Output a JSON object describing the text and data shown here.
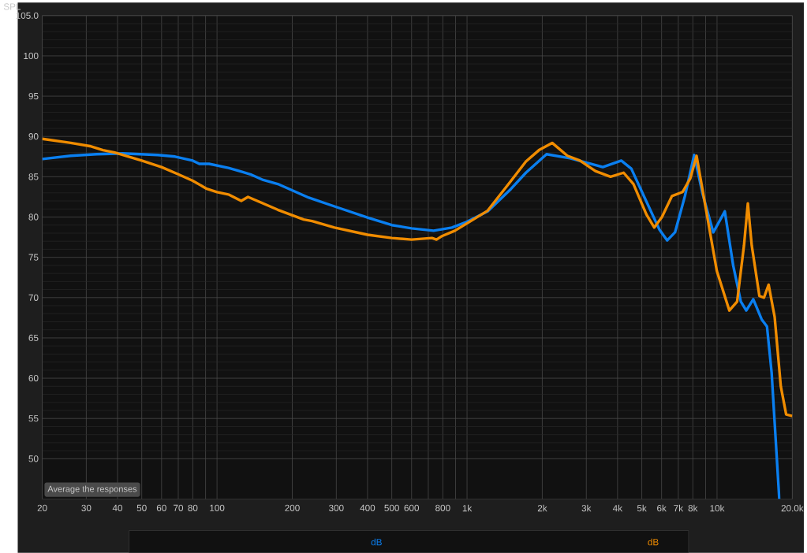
{
  "chart_data": {
    "type": "line",
    "ylabel": "SPL",
    "log": "x",
    "grid": true,
    "xlim": [
      20,
      20000
    ],
    "ylim": [
      45,
      105
    ],
    "xticks": [
      20,
      30,
      40,
      50,
      60,
      70,
      80,
      {
        "value": 90,
        "label": null
      },
      100,
      200,
      300,
      400,
      500,
      600,
      {
        "value": 700,
        "label": null
      },
      800,
      {
        "value": 900,
        "label": null
      },
      {
        "value": 1000,
        "label": "1k"
      },
      {
        "value": 2000,
        "label": "2k"
      },
      {
        "value": 3000,
        "label": "3k"
      },
      {
        "value": 4000,
        "label": "4k"
      },
      {
        "value": 5000,
        "label": "5k"
      },
      {
        "value": 6000,
        "label": "6k"
      },
      {
        "value": 7000,
        "label": "7k"
      },
      {
        "value": 8000,
        "label": "8k"
      },
      {
        "value": 9000,
        "label": null
      },
      {
        "value": 10000,
        "label": "10k"
      },
      {
        "value": 20000,
        "label": "20.0k"
      }
    ],
    "yticks": [
      50,
      55,
      60,
      65,
      70,
      75,
      80,
      85,
      90,
      95,
      100,
      {
        "value": 105,
        "label": "105.0"
      }
    ],
    "annotations": [
      "Average the responses",
      "dB",
      "dB"
    ],
    "series": [
      {
        "color": "#0a7ff0",
        "x": [
          20,
          26,
          33,
          42,
          58,
          68,
          80,
          85,
          93,
          111,
          126,
          136,
          153,
          175,
          233,
          303,
          404,
          500,
          600,
          735,
          870,
          980,
          1210,
          1500,
          1720,
          2080,
          2580,
          3120,
          3490,
          4140,
          4540,
          5220,
          5890,
          6320,
          6790,
          7440,
          8100,
          8750,
          9660,
          10740,
          11600,
          12450,
          13090,
          13960,
          15080,
          15840,
          16530,
          17740
        ],
        "values": [
          87.2,
          87.6,
          87.8,
          87.9,
          87.7,
          87.5,
          87.0,
          86.6,
          86.6,
          86.1,
          85.6,
          85.3,
          84.6,
          84.1,
          82.4,
          81.2,
          79.9,
          79.0,
          78.6,
          78.3,
          78.7,
          79.3,
          80.7,
          83.5,
          85.5,
          87.8,
          87.3,
          86.6,
          86.2,
          87.0,
          86.0,
          81.9,
          78.4,
          77.1,
          78.1,
          82.6,
          87.7,
          82.9,
          78.1,
          80.7,
          74.0,
          69.5,
          68.4,
          69.8,
          67.3,
          66.4,
          60.7,
          45.0
        ]
      },
      {
        "color": "#f08c00",
        "x": [
          20,
          26,
          31,
          35,
          39,
          50,
          60,
          70,
          80,
          91,
          100,
          111,
          125,
          133,
          175,
          222,
          240,
          295,
          400,
          500,
          600,
          724,
          755,
          790,
          894,
          1060,
          1210,
          1500,
          1720,
          1940,
          2190,
          2520,
          2830,
          3260,
          3750,
          4230,
          4630,
          5220,
          5610,
          6020,
          6600,
          7280,
          7820,
          8280,
          9000,
          9980,
          11200,
          12030,
          12820,
          13280,
          13760,
          14770,
          15410,
          16080,
          17000,
          17990,
          18900,
          20000
        ],
        "values": [
          89.7,
          89.2,
          88.8,
          88.3,
          88.0,
          87.0,
          86.2,
          85.3,
          84.5,
          83.5,
          83.1,
          82.8,
          82.0,
          82.5,
          80.9,
          79.7,
          79.5,
          78.7,
          77.8,
          77.4,
          77.2,
          77.4,
          77.2,
          77.6,
          78.3,
          79.7,
          80.8,
          84.5,
          86.9,
          88.3,
          89.2,
          87.6,
          87.0,
          85.7,
          85.0,
          85.5,
          84.1,
          80.3,
          78.7,
          80.0,
          82.6,
          83.1,
          84.8,
          87.6,
          81.2,
          73.3,
          68.4,
          69.5,
          76.5,
          81.7,
          76.5,
          70.2,
          70.0,
          71.6,
          67.6,
          59.0,
          55.5,
          55.3
        ]
      }
    ]
  }
}
